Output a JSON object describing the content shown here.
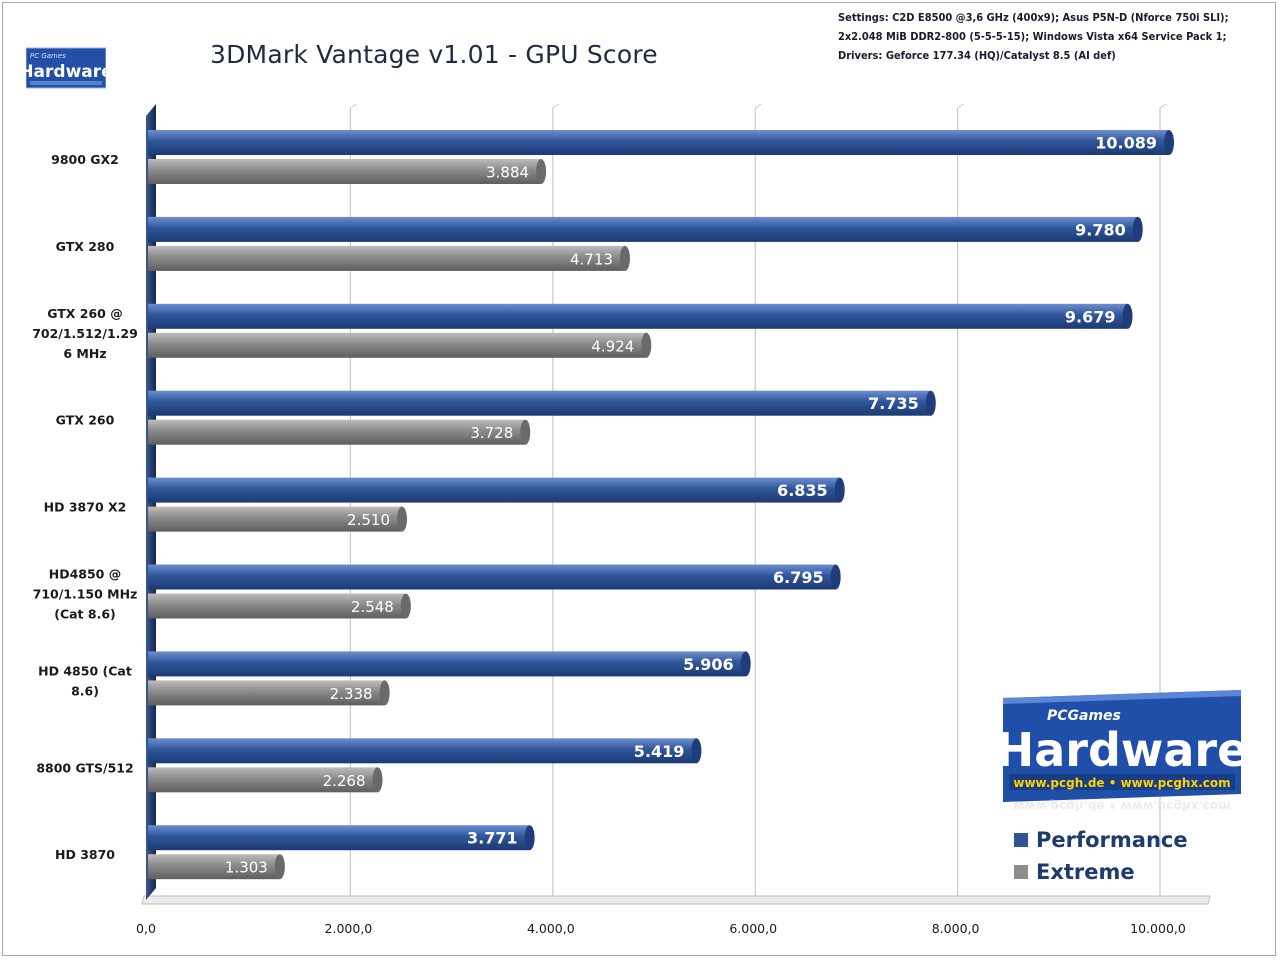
{
  "header": {
    "settings_lines": [
      "Settings: C2D E8500 @3,6 GHz (400x9); Asus P5N-D (Nforce 750i SLI);",
      "2x2.048 MiB DDR2-800 (5-5-5-15);  Windows Vista x64 Service Pack 1;",
      "Drivers: Geforce 177.34 (HQ)/Catalyst 8.5 (AI def)"
    ]
  },
  "logos": {
    "small": {
      "text": "Hardware",
      "subtext": "PC Games"
    },
    "big": {
      "text": "Hardware",
      "subtext": "PCGames",
      "url_text": "www.pcgh.de • www.pcghx.com"
    }
  },
  "colors": {
    "performance": "#2e5496",
    "extreme": "#8c8c8c",
    "axis_wall": "#1e3158",
    "grid": "#c8c8c8",
    "logo_bg": "#1f4fa8"
  },
  "chart_data": {
    "type": "bar",
    "orientation": "horizontal",
    "title": "3DMark Vantage v1.01 -  GPU Score",
    "categories": [
      "9800 GX2",
      "GTX 280",
      "GTX 260 @\n702/1.512/1.29\n6 MHz",
      "GTX 260",
      "HD 3870 X2",
      "HD4850 @\n710/1.150 MHz\n(Cat 8.6)",
      "HD 4850 (Cat\n8.6)",
      "8800 GTS/512",
      "HD 3870"
    ],
    "series": [
      {
        "name": "Performance",
        "values": [
          10089,
          9780,
          9679,
          7735,
          6835,
          6795,
          5906,
          5419,
          3771
        ],
        "labels": [
          "10.089",
          "9.780",
          "9.679",
          "7.735",
          "6.835",
          "6.795",
          "5.906",
          "5.419",
          "3.771"
        ]
      },
      {
        "name": "Extreme",
        "values": [
          3884,
          4713,
          4924,
          3728,
          2510,
          2548,
          2338,
          2268,
          1303
        ],
        "labels": [
          "3.884",
          "4.713",
          "4.924",
          "3.728",
          "2.510",
          "2.548",
          "2.338",
          "2.268",
          "1.303"
        ]
      }
    ],
    "xlim": [
      0,
      10000
    ],
    "xticks": [
      0,
      2000,
      4000,
      6000,
      8000,
      10000
    ],
    "xtick_labels": [
      "0,0",
      "2.000,0",
      "4.000,0",
      "6.000,0",
      "8.000,0",
      "10.000,0"
    ],
    "grid": true,
    "legend": "bottom-right"
  }
}
